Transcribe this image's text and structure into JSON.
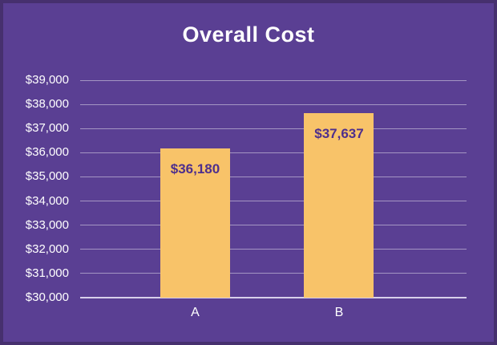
{
  "colors": {
    "background": "#5a3f93",
    "border": "#46306e",
    "bar_fill": "#f8c369",
    "bar_value_text": "#4e2f8d",
    "gridline": "rgba(255,255,255,0.45)",
    "baseline": "#d8cfeb",
    "axis_text": "#ffffff",
    "title_text": "#ffffff"
  },
  "chart_data": {
    "type": "bar",
    "title": "Overall Cost",
    "xlabel": "",
    "ylabel": "",
    "categories": [
      "A",
      "B"
    ],
    "values": [
      36180,
      37637
    ],
    "value_labels": [
      "$36,180",
      "$37,637"
    ],
    "ylim": [
      30000,
      39000
    ],
    "ytick_step": 1000,
    "yticks": [
      {
        "value": 39000,
        "label": "$39,000"
      },
      {
        "value": 38000,
        "label": "$38,000"
      },
      {
        "value": 37000,
        "label": "$37,000"
      },
      {
        "value": 36000,
        "label": "$36,000"
      },
      {
        "value": 35000,
        "label": "$35,000"
      },
      {
        "value": 34000,
        "label": "$34,000"
      },
      {
        "value": 33000,
        "label": "$33,000"
      },
      {
        "value": 32000,
        "label": "$32,000"
      },
      {
        "value": 31000,
        "label": "$31,000"
      },
      {
        "value": 30000,
        "label": "$30,000"
      }
    ],
    "grid": true,
    "legend": "none",
    "bar_color": "#f8c369"
  }
}
